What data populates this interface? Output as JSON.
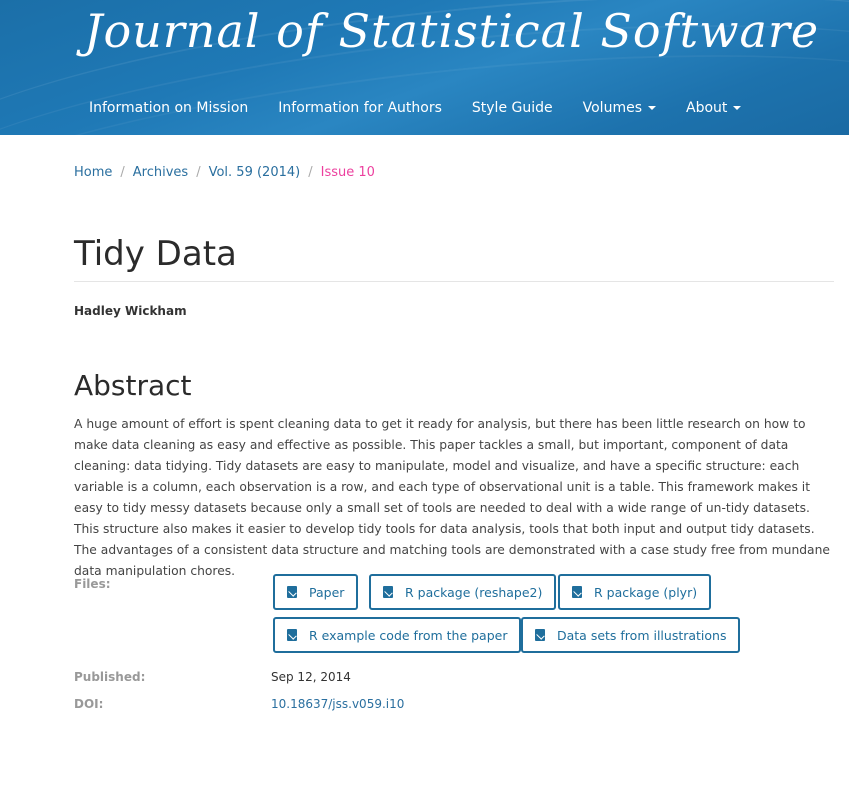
{
  "site": {
    "title": "Journal of Statistical Software",
    "brand_color": "#1f79b6"
  },
  "nav": {
    "items": [
      {
        "label": "Information on Mission",
        "dropdown": false
      },
      {
        "label": "Information for Authors",
        "dropdown": false
      },
      {
        "label": "Style Guide",
        "dropdown": false
      },
      {
        "label": "Volumes",
        "dropdown": true
      },
      {
        "label": "About",
        "dropdown": true
      }
    ]
  },
  "breadcrumb": {
    "items": [
      "Home",
      "Archives",
      "Vol. 59 (2014)"
    ],
    "current": "Issue 10"
  },
  "article": {
    "title": "Tidy Data",
    "author": "Hadley Wickham",
    "abstract_heading": "Abstract",
    "abstract": "A huge amount of effort is spent cleaning data to get it ready for analysis, but there has been little research on how to make data cleaning as easy and effective as possible. This paper tackles a small, but important, component of data cleaning: data tidying. Tidy datasets are easy to manipulate, model and visualize, and have a specific structure: each variable is a column, each observation is a row, and each type of observational unit is a table. This framework makes it easy to tidy messy datasets because only a small set of tools are needed to deal with a wide range of un-tidy datasets. This structure also makes it easier to develop tidy tools for data analysis, tools that both input and output tidy datasets. The advantages of a consistent data structure and matching tools are demonstrated with a case study free from mundane data manipulation chores."
  },
  "files": {
    "label": "Files:",
    "buttons": [
      {
        "label": "Paper",
        "icon": "pdf-icon"
      },
      {
        "label": "R package (reshape2)",
        "icon": "download-icon"
      },
      {
        "label": "R package (plyr)",
        "icon": "download-icon"
      },
      {
        "label": "R example code from the paper",
        "icon": "download-icon"
      },
      {
        "label": "Data sets from illustrations",
        "icon": "download-icon"
      }
    ]
  },
  "meta": {
    "published_label": "Published:",
    "published_value": "Sep 12, 2014",
    "doi_label": "DOI:",
    "doi_value": "10.18637/jss.v059.i10"
  }
}
